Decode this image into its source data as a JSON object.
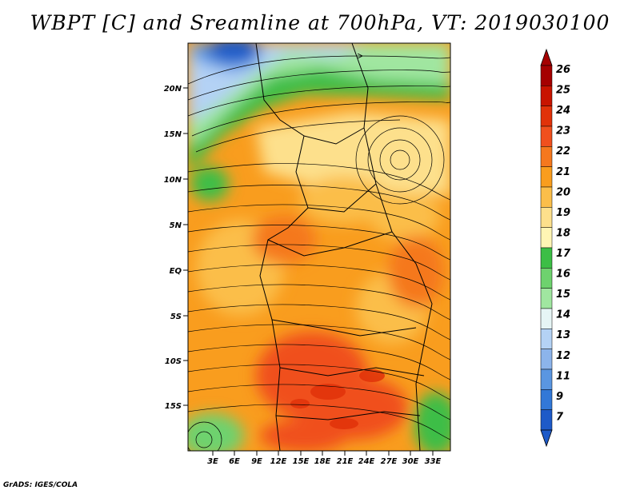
{
  "title": "WBPT [C] and Sreamline at 700hPa, VT: 2019030100",
  "credit": "GrADS: IGES/COLA",
  "map": {
    "lon_range": [
      0,
      35
    ],
    "lat_range": [
      -21,
      24
    ],
    "lon_ticks": [
      "3E",
      "6E",
      "9E",
      "12E",
      "15E",
      "18E",
      "21E",
      "24E",
      "27E",
      "30E",
      "33E"
    ],
    "lat_ticks": [
      "20N",
      "15N",
      "10N",
      "5N",
      "EQ",
      "5S",
      "10S",
      "15S"
    ]
  },
  "colorbar": {
    "labels": [
      "26",
      "25",
      "24",
      "23",
      "22",
      "21",
      "20",
      "19",
      "18",
      "17",
      "16",
      "15",
      "14",
      "13",
      "12",
      "11",
      "9",
      "7"
    ],
    "colors": [
      "#a50000",
      "#c81400",
      "#e1320a",
      "#f0501e",
      "#f5781e",
      "#f99d1e",
      "#fbbe4a",
      "#fde08c",
      "#fff5b4",
      "#3cbe46",
      "#6ed26e",
      "#a0e6a0",
      "#e6f5f5",
      "#b4d2f5",
      "#8cb4eb",
      "#5a96e1",
      "#3278d7",
      "#1e5ac8"
    ]
  }
}
